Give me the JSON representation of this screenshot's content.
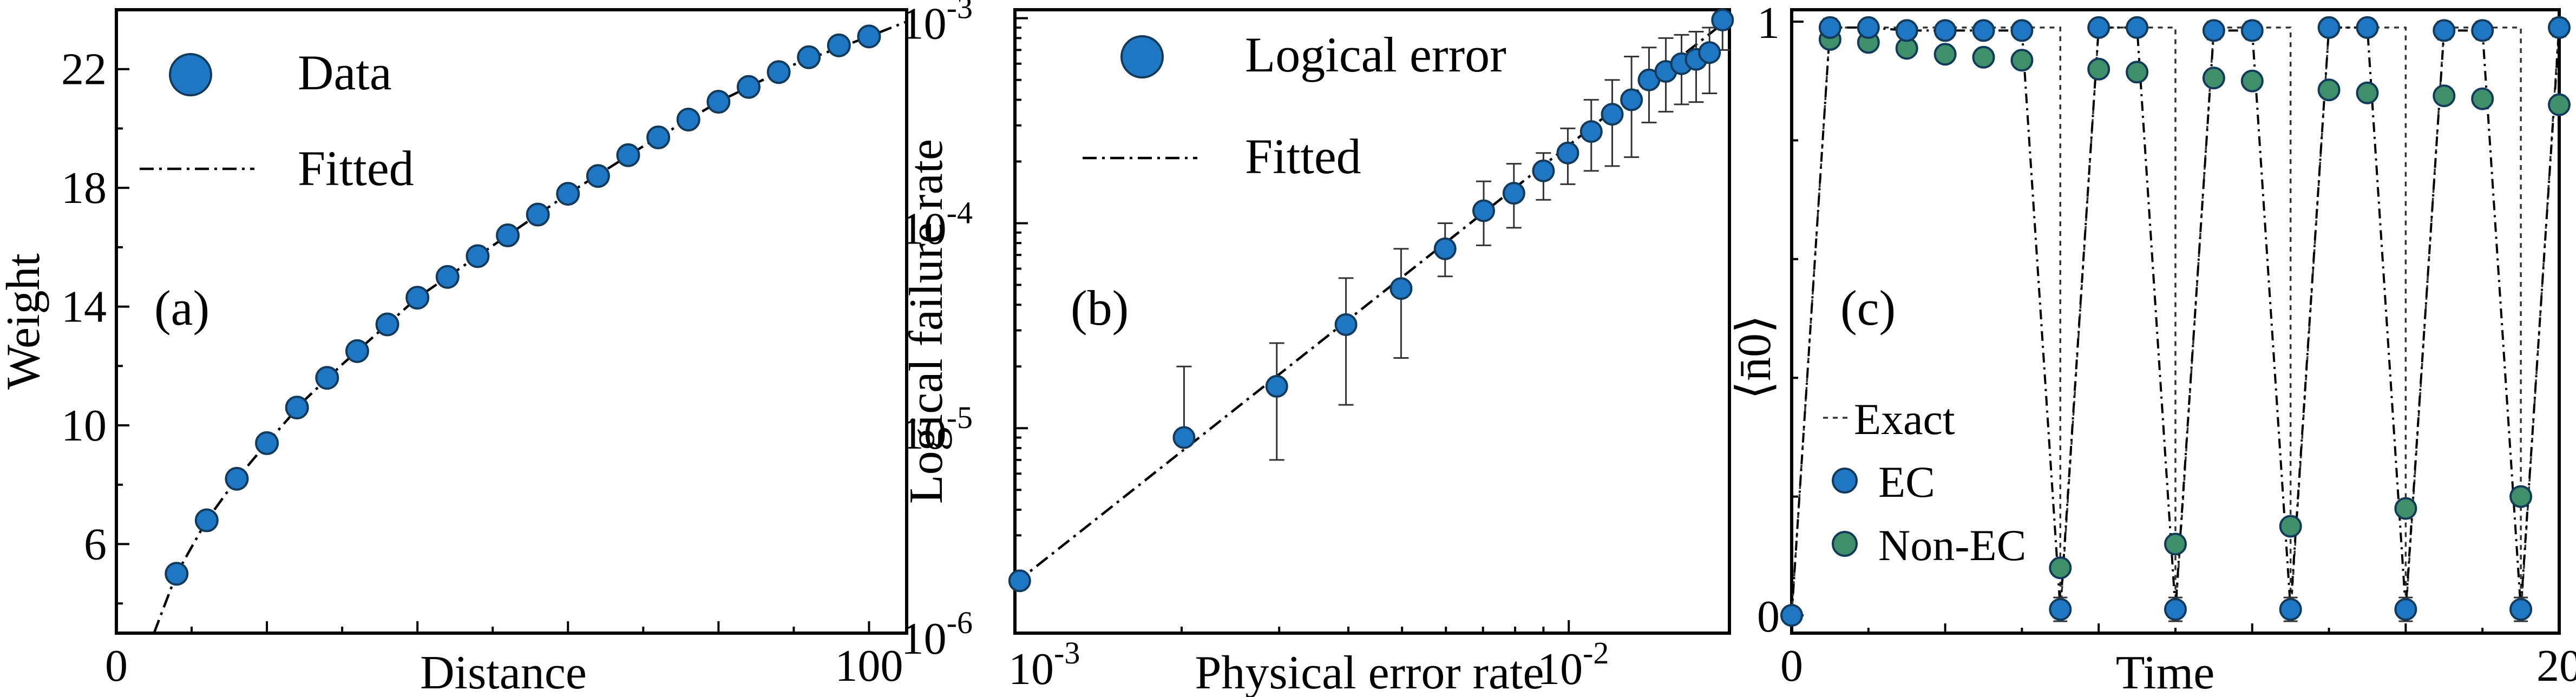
{
  "colors": {
    "data_blue": "#1f77c4",
    "non_ec_green": "#3f8f6a",
    "axis": "#000000"
  },
  "chart_data": [
    {
      "type": "scatter",
      "panel_label": "(a)",
      "xlabel": "Distance",
      "ylabel": "Weight",
      "xlim": [
        0,
        105
      ],
      "ylim": [
        3,
        24
      ],
      "x_ticks": [
        0,
        100
      ],
      "x_tick_labels": [
        "0",
        "100"
      ],
      "y_ticks": [
        6,
        10,
        14,
        18,
        22
      ],
      "y_tick_labels": [
        "6",
        "10",
        "14",
        "18",
        "22"
      ],
      "legend": [
        "Data",
        "Fitted"
      ],
      "legend_position": "top-left",
      "series": [
        {
          "name": "Data",
          "kind": "points",
          "x": [
            8,
            12,
            16,
            20,
            24,
            28,
            32,
            36,
            40,
            44,
            48,
            52,
            56,
            60,
            64,
            68,
            72,
            76,
            80,
            84,
            88,
            92,
            96,
            100
          ],
          "y": [
            5.0,
            6.8,
            8.2,
            9.4,
            10.6,
            11.6,
            12.5,
            13.4,
            14.3,
            15.0,
            15.7,
            16.4,
            17.1,
            17.8,
            18.4,
            19.1,
            19.7,
            20.3,
            20.9,
            21.4,
            21.9,
            22.4,
            22.8,
            23.1
          ]
        },
        {
          "name": "Fitted",
          "kind": "line",
          "x": [
            5,
            8,
            12,
            16,
            20,
            25,
            30,
            40,
            50,
            60,
            70,
            80,
            90,
            100,
            105
          ],
          "y": [
            3.0,
            5.0,
            6.8,
            8.2,
            9.4,
            10.85,
            12.05,
            14.3,
            16.05,
            17.8,
            19.4,
            20.9,
            22.15,
            23.1,
            23.6
          ]
        }
      ]
    },
    {
      "type": "scatter",
      "panel_label": "(b)",
      "xlabel": "Physical error rate",
      "ylabel": "Logical failure rate",
      "xscale": "log",
      "yscale": "log",
      "xlim": [
        0.001,
        0.0195
      ],
      "ylim": [
        1e-06,
        0.0011
      ],
      "x_tick_labels": [
        "10^-3",
        "10^-2"
      ],
      "x_ticks": [
        0.001,
        0.01
      ],
      "y_ticks": [
        1e-06,
        1e-05,
        0.0001,
        0.001
      ],
      "y_tick_labels": [
        "10^-6",
        "10^-5",
        "10^-4",
        "10^-3"
      ],
      "legend": [
        "Logical error",
        "Fitted"
      ],
      "legend_position": "top-left",
      "series": [
        {
          "name": "Logical error",
          "kind": "points",
          "x": [
            0.00102,
            0.00202,
            0.00297,
            0.00396,
            0.00498,
            0.00598,
            0.00702,
            0.00796,
            0.009,
            0.00996,
            0.01098,
            0.01198,
            0.01298,
            0.01396,
            0.01497,
            0.01598,
            0.01698,
            0.01795,
            0.01895
          ],
          "y": [
            1.8e-06,
            9e-06,
            1.6e-05,
            3.2e-05,
            4.8e-05,
            7.5e-05,
            0.000115,
            0.00014,
            0.00018,
            0.00022,
            0.00028,
            0.00034,
            0.0004,
            0.0005,
            0.00055,
            0.0006,
            0.00063,
            0.00068,
            0.00098
          ],
          "err_low": [
            1.8e-06,
            9e-06,
            7e-06,
            1.3e-05,
            2.2e-05,
            5.5e-05,
            7.8e-05,
            9.5e-05,
            0.00013,
            0.000155,
            0.00018,
            0.00019,
            0.00021,
            0.00031,
            0.00035,
            0.00038,
            0.00039,
            0.00043,
            0.0007
          ],
          "err_high": [
            1.8e-06,
            2e-05,
            2.6e-05,
            5.4e-05,
            7.5e-05,
            0.0001,
            0.00016,
            0.000195,
            0.00022,
            0.00029,
            0.0004,
            0.0005,
            0.00065,
            0.00072,
            0.0008,
            0.00083,
            0.00086,
            0.0009,
            0.00105
          ]
        },
        {
          "name": "Fitted",
          "kind": "line",
          "x": [
            0.001,
            0.0195
          ],
          "y": [
            1.75e-06,
            0.001
          ]
        }
      ]
    },
    {
      "type": "line",
      "panel_label": "(c)",
      "xlabel": "Time",
      "ylabel": "⟨n̄0⟩",
      "xlim": [
        0,
        20
      ],
      "ylim": [
        -0.03,
        1.02
      ],
      "x_ticks": [
        0,
        20
      ],
      "x_tick_labels": [
        "0",
        "20"
      ],
      "y_ticks": [
        0,
        1
      ],
      "y_tick_labels": [
        "0",
        "1"
      ],
      "legend": [
        "Exact",
        "EC",
        "Non-EC"
      ],
      "legend_position": "bottom-left",
      "series": [
        {
          "name": "Exact",
          "kind": "line",
          "x": [
            0,
            1,
            2,
            3,
            4,
            5,
            6,
            7,
            7,
            8,
            9,
            10,
            10,
            11,
            12,
            13,
            13,
            14,
            15,
            16,
            16,
            17,
            18,
            19,
            19,
            20
          ],
          "y": [
            0,
            0.99,
            0.99,
            0.99,
            0.99,
            0.99,
            0.99,
            0.99,
            0.0,
            0.99,
            0.99,
            0.99,
            0.0,
            0.99,
            0.99,
            0.99,
            0.0,
            0.99,
            0.99,
            0.99,
            0.0,
            0.99,
            0.99,
            0.99,
            0.0,
            1.0
          ]
        },
        {
          "name": "EC",
          "kind": "points",
          "x": [
            0,
            1,
            2,
            3,
            4,
            5,
            6,
            7,
            8,
            9,
            10,
            11,
            12,
            13,
            14,
            15,
            16,
            17,
            18,
            19,
            20
          ],
          "y": [
            0.0,
            0.99,
            0.99,
            0.985,
            0.985,
            0.985,
            0.985,
            0.01,
            0.99,
            0.99,
            0.01,
            0.985,
            0.985,
            0.01,
            0.99,
            0.99,
            0.01,
            0.985,
            0.985,
            0.01,
            0.99
          ],
          "err": [
            0,
            0.015,
            0.012,
            0.012,
            0.012,
            0.012,
            0.012,
            0.02,
            0.012,
            0.012,
            0.02,
            0.015,
            0.015,
            0.02,
            0.012,
            0.012,
            0.02,
            0.015,
            0.015,
            0.02,
            0.015
          ]
        },
        {
          "name": "Non-EC",
          "kind": "points",
          "x": [
            1,
            2,
            3,
            4,
            5,
            6,
            7,
            8,
            9,
            10,
            11,
            12,
            13,
            14,
            15,
            16,
            17,
            18,
            19,
            20
          ],
          "y": [
            0.97,
            0.965,
            0.955,
            0.945,
            0.94,
            0.935,
            0.08,
            0.92,
            0.915,
            0.12,
            0.905,
            0.9,
            0.15,
            0.885,
            0.88,
            0.18,
            0.875,
            0.87,
            0.2,
            0.86
          ]
        }
      ]
    }
  ]
}
